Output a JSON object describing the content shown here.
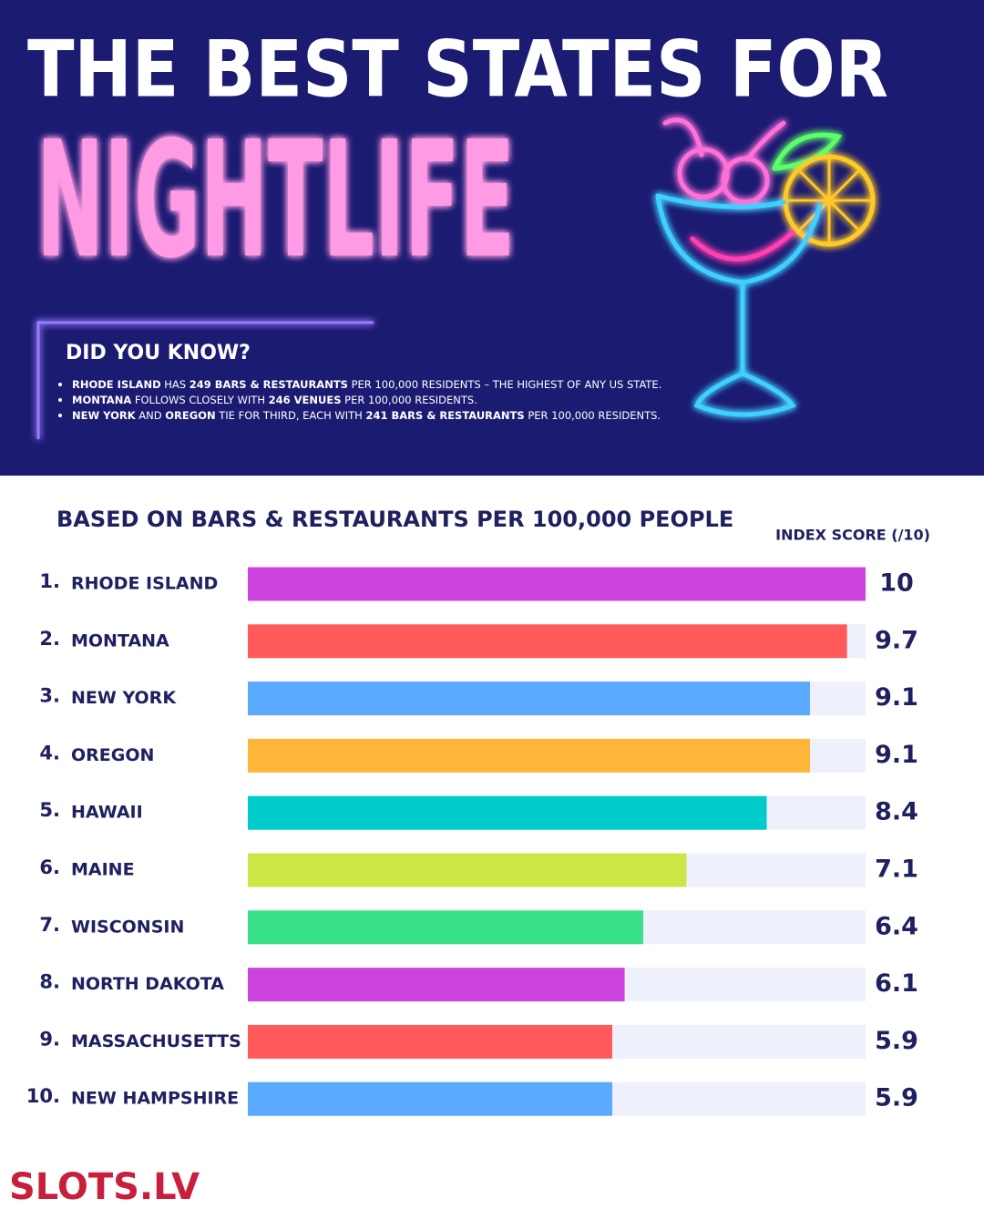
{
  "header": {
    "title_line1": "THE BEST STATES FOR",
    "title_line2": "NIGHTLIFE",
    "did_you_know": "DID YOU KNOW?",
    "bullets": [
      [
        {
          "text": "RHODE ISLAND",
          "bold": true
        },
        {
          "text": " HAS ",
          "bold": false
        },
        {
          "text": "249 BARS & RESTAURANTS",
          "bold": true
        },
        {
          "text": " PER 100,000 RESIDENTS – THE HIGHEST OF ANY US STATE.",
          "bold": false
        }
      ],
      [
        {
          "text": "MONTANA",
          "bold": true
        },
        {
          "text": " FOLLOWS CLOSELY WITH ",
          "bold": false
        },
        {
          "text": "246 VENUES",
          "bold": true
        },
        {
          "text": " PER 100,000 RESIDENTS.",
          "bold": false
        }
      ],
      [
        {
          "text": "NEW YORK",
          "bold": true
        },
        {
          "text": " AND ",
          "bold": false
        },
        {
          "text": "OREGON",
          "bold": true
        },
        {
          "text": " TIE FOR THIRD, EACH WITH ",
          "bold": false
        },
        {
          "text": "241 BARS & RESTAURANTS",
          "bold": true
        },
        {
          "text": " PER 100,000 RESIDENTS.",
          "bold": false
        }
      ]
    ]
  },
  "chart_data": {
    "type": "bar",
    "orientation": "horizontal",
    "subtitle": "BASED ON BARS & RESTAURANTS PER 100,000 PEOPLE",
    "value_axis_label": "INDEX SCORE (/10)",
    "ranks": [
      "1.",
      "2.",
      "3.",
      "4.",
      "5.",
      "6.",
      "7.",
      "8.",
      "9.",
      "10."
    ],
    "categories": [
      "RHODE ISLAND",
      "MONTANA",
      "NEW YORK",
      "OREGON",
      "HAWAII",
      "MAINE",
      "WISCONSIN",
      "NORTH DAKOTA",
      "MASSACHUSETTS",
      "NEW HAMPSHIRE"
    ],
    "values": [
      10,
      9.7,
      9.1,
      9.1,
      8.4,
      7.1,
      6.4,
      6.1,
      5.9,
      5.9
    ],
    "colors": [
      "#cc44dd",
      "#ff5a5a",
      "#5aaaff",
      "#ffb43a",
      "#00cccc",
      "#cce645",
      "#38e08a",
      "#cc44dd",
      "#ff5a5a",
      "#5aaaff"
    ],
    "xlim": [
      0,
      10
    ]
  },
  "footer": {
    "logo": "SLOTS.LV"
  }
}
